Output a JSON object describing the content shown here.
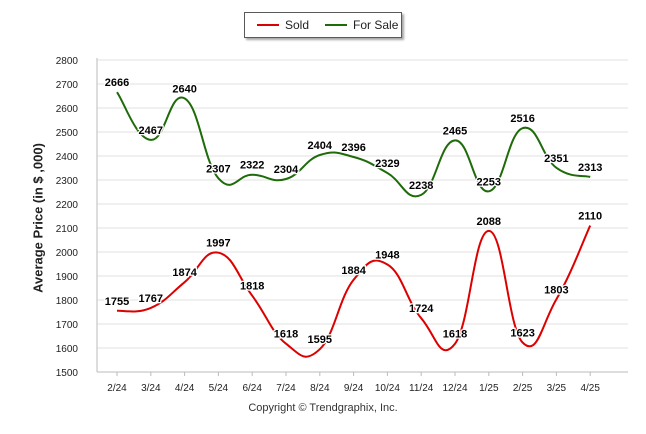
{
  "legend": {
    "sold_label": "Sold",
    "for_sale_label": "For Sale"
  },
  "footer": {
    "copyright": "Copyright © Trendgraphix, Inc."
  },
  "colors": {
    "sold": "#dd0000",
    "for_sale": "#1e6b0a",
    "grid": "#e2e2e2",
    "axis": "#bbbbbb",
    "text": "#222222"
  },
  "chart_data": {
    "type": "line",
    "ylabel": "Average Price (in $ ,000)",
    "xlabel": "",
    "title": "",
    "ylim": [
      1500,
      2800
    ],
    "yticks": [
      1500,
      1600,
      1700,
      1800,
      1900,
      2000,
      2100,
      2200,
      2300,
      2400,
      2500,
      2600,
      2700,
      2800
    ],
    "grid": true,
    "legend_position": "top-center",
    "categories": [
      "2/24",
      "3/24",
      "4/24",
      "5/24",
      "6/24",
      "7/24",
      "8/24",
      "9/24",
      "10/24",
      "11/24",
      "12/24",
      "1/25",
      "2/25",
      "3/25",
      "4/25"
    ],
    "series": [
      {
        "name": "Sold",
        "values": [
          1755,
          1767,
          1874,
          1997,
          1818,
          1618,
          1595,
          1884,
          1948,
          1724,
          1618,
          2088,
          1623,
          1803,
          2110
        ]
      },
      {
        "name": "For Sale",
        "values": [
          2666,
          2467,
          2640,
          2307,
          2322,
          2304,
          2404,
          2396,
          2329,
          2238,
          2465,
          2253,
          2516,
          2351,
          2313
        ]
      }
    ]
  }
}
